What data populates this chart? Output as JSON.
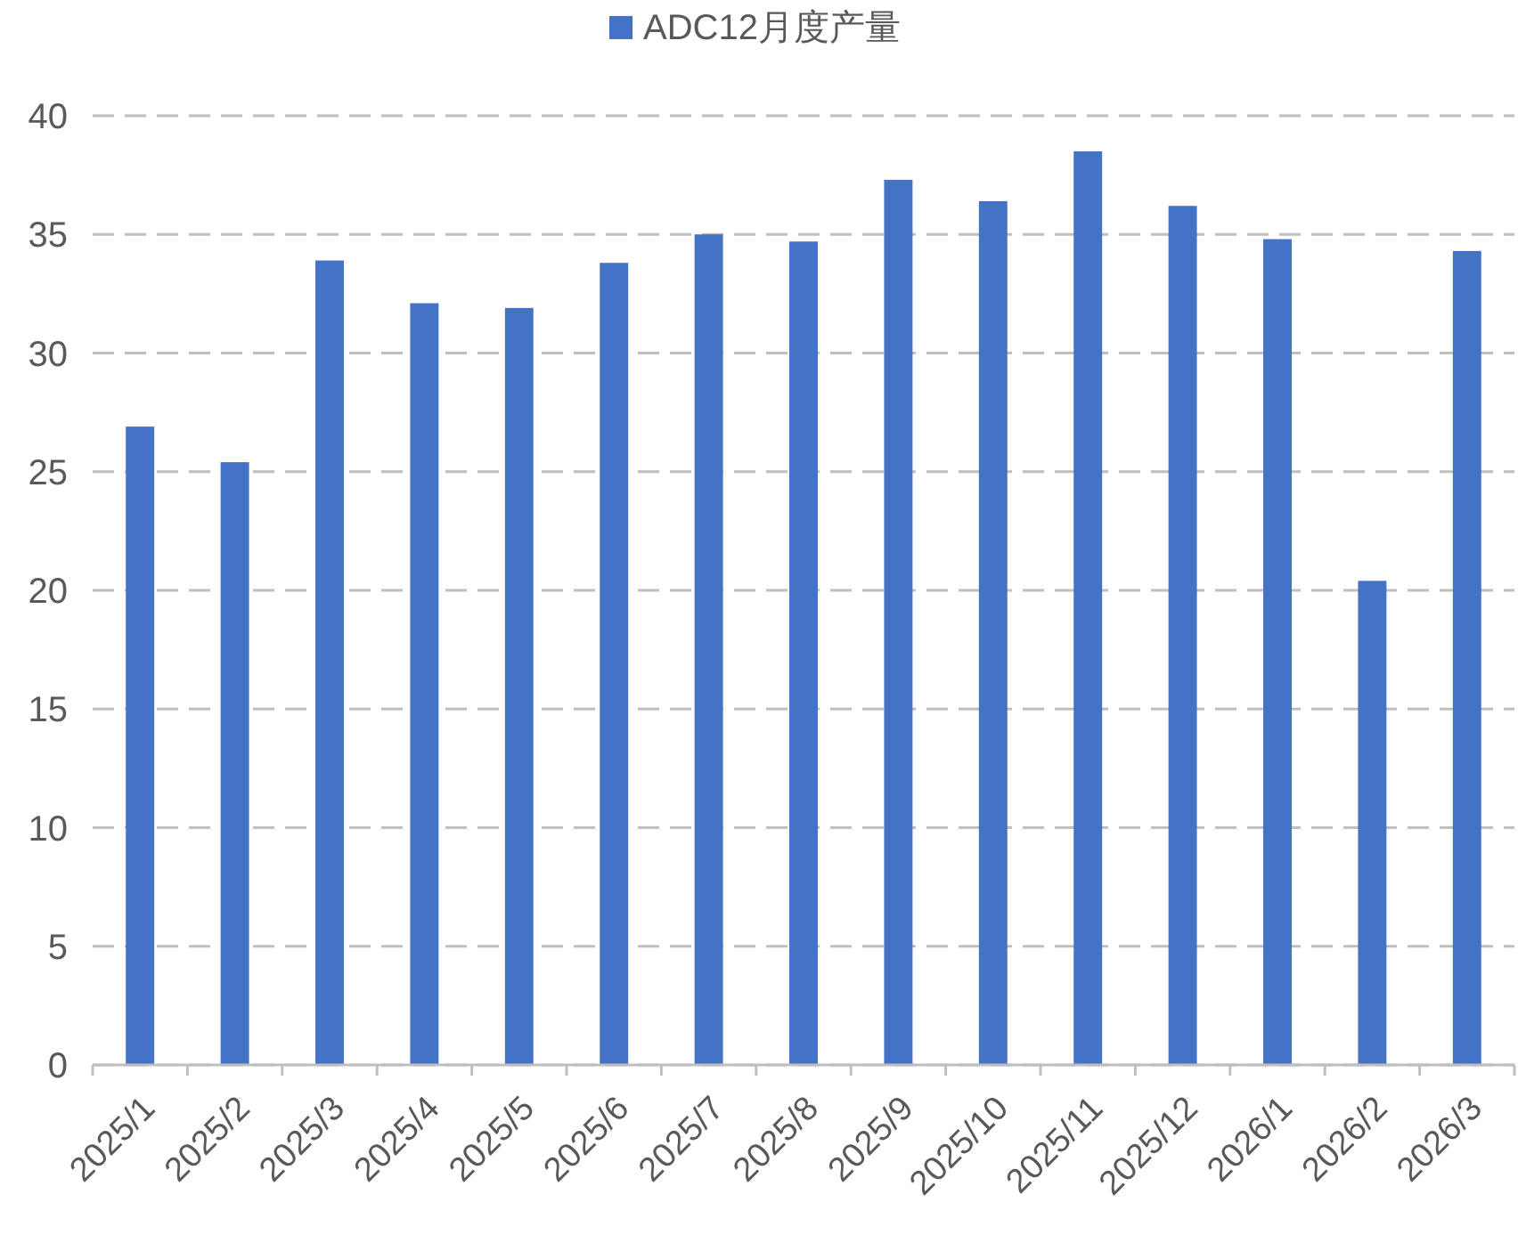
{
  "chart_data": {
    "type": "bar",
    "categories": [
      "2025/1",
      "2025/2",
      "2025/3",
      "2025/4",
      "2025/5",
      "2025/6",
      "2025/7",
      "2025/8",
      "2025/9",
      "2025/10",
      "2025/11",
      "2025/12",
      "2026/1",
      "2026/2",
      "2026/3"
    ],
    "series": [
      {
        "name": "ADC12月度产量",
        "color": "#4472c4",
        "values": [
          26.9,
          25.4,
          33.9,
          32.1,
          31.9,
          33.8,
          35.0,
          34.7,
          37.3,
          36.4,
          38.5,
          36.2,
          34.8,
          20.4,
          34.3
        ]
      }
    ],
    "ylim": [
      0,
      40
    ],
    "yticks": [
      0,
      5,
      10,
      15,
      20,
      25,
      30,
      35,
      40
    ],
    "grid": "y",
    "legend": "top"
  }
}
